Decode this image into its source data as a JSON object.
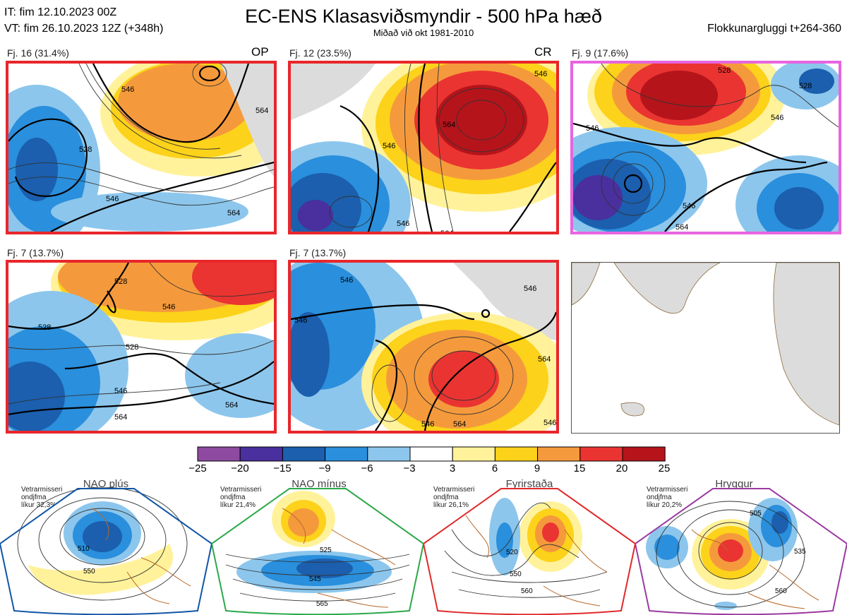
{
  "header": {
    "it_line": "IT: fim 12.10.2023 00Z",
    "vt_line": "VT: fim 26.10.2023 12Z  (+348h)",
    "title": "EC-ENS Klasasviðsmyndir - 500 hPa hæð",
    "subtitle": "Miðað við okt 1981-2010",
    "window": "Flokkunargluggi t+264-360"
  },
  "panels": [
    {
      "label": "Fj. 16 (31.4%)",
      "tag": "OP",
      "border_color": "#e8262b",
      "contours": [
        "546",
        "564",
        "528",
        "546",
        "564"
      ]
    },
    {
      "label": "Fj. 12 (23.5%)",
      "tag": "CR",
      "border_color": "#e8262b",
      "contours": [
        "546",
        "564",
        "546",
        "564",
        "546"
      ]
    },
    {
      "label": "Fj. 9 (17.6%)",
      "tag": "",
      "border_color": "#e765e0",
      "contours": [
        "546",
        "528",
        "546",
        "546",
        "564",
        "528"
      ]
    },
    {
      "label": "Fj. 7 (13.7%)",
      "tag": "",
      "border_color": "#e8262b",
      "contours": [
        "528",
        "546",
        "528",
        "528",
        "546",
        "564",
        "564"
      ]
    },
    {
      "label": "Fj. 7 (13.7%)",
      "tag": "",
      "border_color": "#e8262b",
      "contours": [
        "546",
        "546",
        "546",
        "564",
        "546",
        "564",
        "546"
      ]
    }
  ],
  "colorbar": {
    "colors": [
      "#8e4aa0",
      "#4a2f9e",
      "#1b5fae",
      "#2a8fdc",
      "#8cc6ec",
      "#ffffff",
      "#fff29a",
      "#fcd21a",
      "#f59a3c",
      "#ea3431",
      "#b5141b"
    ],
    "labels": [
      "−25",
      "−20",
      "−15",
      "−9",
      "−6",
      "−3",
      "3",
      "6",
      "9",
      "15",
      "20",
      "25"
    ]
  },
  "regimes": [
    {
      "name": "NAO plús",
      "season": "Vetrarmisseri",
      "months": "ondjfma",
      "prob": "líkur 32,3%",
      "color": "#1156a6",
      "contours": [
        "510",
        "550"
      ]
    },
    {
      "name": "NAO mínus",
      "season": "Vetrarmisseri",
      "months": "ondjfma",
      "prob": "líkur 21,4%",
      "color": "#2aa94a",
      "contours": [
        "525",
        "545",
        "565"
      ]
    },
    {
      "name": "Fyrirstaða",
      "season": "Vetrarmisseri",
      "months": "ondjfma",
      "prob": "líkur 26,1%",
      "color": "#e02a2a",
      "contours": [
        "520",
        "550",
        "560"
      ]
    },
    {
      "name": "Hryggur",
      "season": "Vetrarmisseri",
      "months": "ondjfma",
      "prob": "líkur 20,2%",
      "color": "#e765e0",
      "contours": [
        "505",
        "535",
        "560"
      ]
    }
  ]
}
